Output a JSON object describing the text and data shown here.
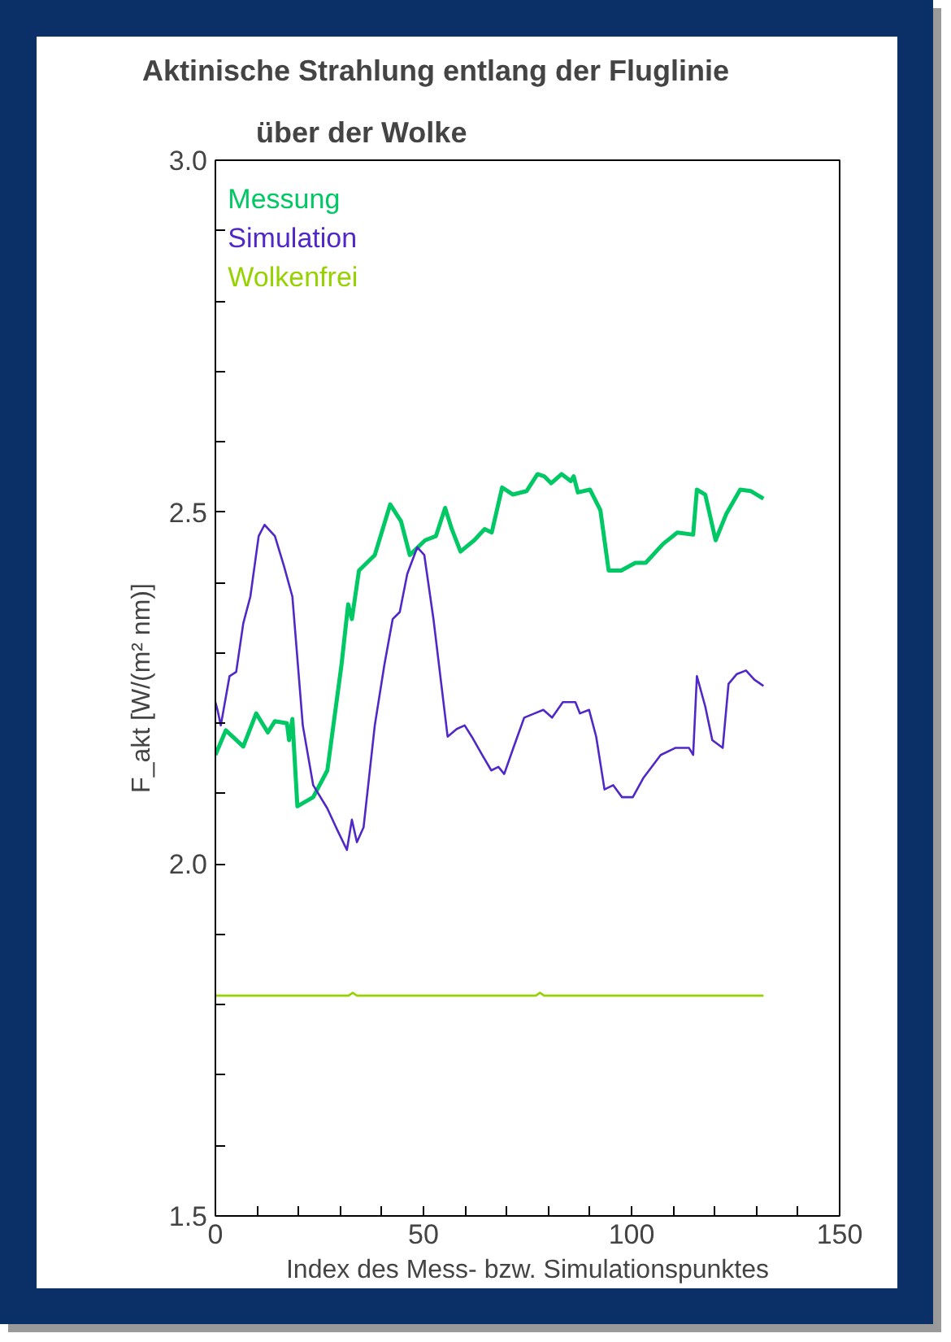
{
  "chart_data": {
    "type": "line",
    "title": "Aktinische Strahlung entlang der Fluglinie",
    "subtitle": "über der Wolke",
    "xlabel": "Index des Mess- bzw. Simulationspunktes",
    "ylabel": "F_akt [W/(m² nm)]",
    "xlim": [
      0,
      150
    ],
    "ylim": [
      1.5,
      3.0
    ],
    "xticks": [
      0,
      {
        "value": 10,
        "label": null
      },
      {
        "value": 20,
        "label": null
      },
      {
        "value": 30,
        "label": null
      },
      {
        "value": 40,
        "label": null
      },
      50,
      {
        "value": 60,
        "label": null
      },
      {
        "value": 70,
        "label": null
      },
      {
        "value": 80,
        "label": null
      },
      {
        "value": 90,
        "label": null
      },
      100,
      {
        "value": 110,
        "label": null
      },
      {
        "value": 120,
        "label": null
      },
      {
        "value": 130,
        "label": null
      },
      {
        "value": 140,
        "label": null
      },
      150
    ],
    "yticks": [
      {
        "value": 1.5,
        "label": "1.5"
      },
      {
        "value": 1.6,
        "label": null
      },
      {
        "value": 1.7,
        "label": null
      },
      {
        "value": 1.8,
        "label": null
      },
      {
        "value": 1.9,
        "label": null
      },
      {
        "value": 2.0,
        "label": "2.0"
      },
      {
        "value": 2.1,
        "label": null
      },
      {
        "value": 2.2,
        "label": null
      },
      {
        "value": 2.3,
        "label": null
      },
      {
        "value": 2.4,
        "label": null
      },
      {
        "value": 2.5,
        "label": "2.5"
      },
      {
        "value": 2.6,
        "label": null
      },
      {
        "value": 2.7,
        "label": null
      },
      {
        "value": 2.8,
        "label": null
      },
      {
        "value": 2.9,
        "label": null
      },
      {
        "value": 3.0,
        "label": "3.0"
      }
    ],
    "grid": false,
    "legend": "top left",
    "line_style": "solid",
    "marker": "none",
    "series": [
      {
        "name": "Messung",
        "color": "#00c864",
        "x": [
          0,
          2.5,
          6.7,
          9.8,
          12.6,
          14.3,
          17.2,
          17.7,
          18.5,
          19.7,
          23.5,
          26.9,
          30.3,
          31.9,
          32.8,
          34.5,
          38.3,
          42.0,
          44.6,
          46.7,
          50.4,
          53.0,
          55.2,
          56.8,
          58.9,
          62.2,
          64.7,
          66.4,
          68.9,
          71.5,
          74.8,
          77.4,
          79,
          80.7,
          83.2,
          85.4,
          86.1,
          87.1,
          90,
          92.5,
          94.5,
          97.5,
          100.9,
          103.4,
          107.6,
          111,
          114.8,
          115.7,
          117.7,
          120.2,
          122.8,
          126.1,
          128.6,
          131.7
        ],
        "values": [
          2.155,
          2.19,
          2.167,
          2.214,
          2.187,
          2.203,
          2.2,
          2.176,
          2.206,
          2.082,
          2.095,
          2.133,
          2.283,
          2.369,
          2.348,
          2.417,
          2.439,
          2.511,
          2.487,
          2.439,
          2.46,
          2.466,
          2.506,
          2.476,
          2.444,
          2.46,
          2.476,
          2.471,
          2.535,
          2.525,
          2.53,
          2.554,
          2.551,
          2.541,
          2.554,
          2.544,
          2.551,
          2.528,
          2.532,
          2.503,
          2.417,
          2.417,
          2.428,
          2.428,
          2.455,
          2.471,
          2.468,
          2.532,
          2.525,
          2.46,
          2.498,
          2.532,
          2.53,
          2.519
        ]
      },
      {
        "name": "Simulation",
        "color": "#5028c8",
        "x": [
          0,
          0.5,
          1.3,
          3.4,
          5,
          6.7,
          8.4,
          10.4,
          11.8,
          14.3,
          16.5,
          18.5,
          21,
          23.5,
          26.9,
          29.4,
          31.6,
          32.8,
          34,
          35.6,
          38.3,
          40.6,
          42.6,
          44.3,
          46.1,
          48.5,
          50.2,
          52.4,
          55.8,
          58,
          59.9,
          61.6,
          64.1,
          66.3,
          68,
          69.4,
          71.6,
          74.2,
          76.7,
          78.8,
          80.9,
          83.5,
          86.5,
          87.6,
          89.8,
          91.5,
          93.5,
          95.6,
          97.7,
          100.3,
          102.8,
          107,
          110.5,
          113.8,
          114.8,
          115.7,
          117.7,
          119.4,
          121.9,
          123.3,
          125.3,
          127.5,
          129.5,
          131.7
        ],
        "values": [
          2.23,
          2.219,
          2.197,
          2.267,
          2.273,
          2.342,
          2.38,
          2.466,
          2.482,
          2.466,
          2.423,
          2.38,
          2.197,
          2.112,
          2.079,
          2.047,
          2.02,
          2.063,
          2.031,
          2.052,
          2.197,
          2.283,
          2.348,
          2.358,
          2.412,
          2.45,
          2.439,
          2.348,
          2.181,
          2.192,
          2.197,
          2.181,
          2.155,
          2.133,
          2.138,
          2.128,
          2.165,
          2.208,
          2.214,
          2.219,
          2.208,
          2.23,
          2.23,
          2.214,
          2.219,
          2.181,
          2.106,
          2.112,
          2.095,
          2.095,
          2.122,
          2.155,
          2.165,
          2.165,
          2.155,
          2.267,
          2.224,
          2.176,
          2.165,
          2.256,
          2.27,
          2.275,
          2.262,
          2.253
        ]
      },
      {
        "name": "Wolkenfrei",
        "color": "#96d200",
        "x": [
          0,
          32,
          33,
          34,
          77,
          78,
          79,
          131.7
        ],
        "values": [
          1.813,
          1.813,
          1.817,
          1.813,
          1.813,
          1.817,
          1.813,
          1.813
        ]
      }
    ]
  }
}
